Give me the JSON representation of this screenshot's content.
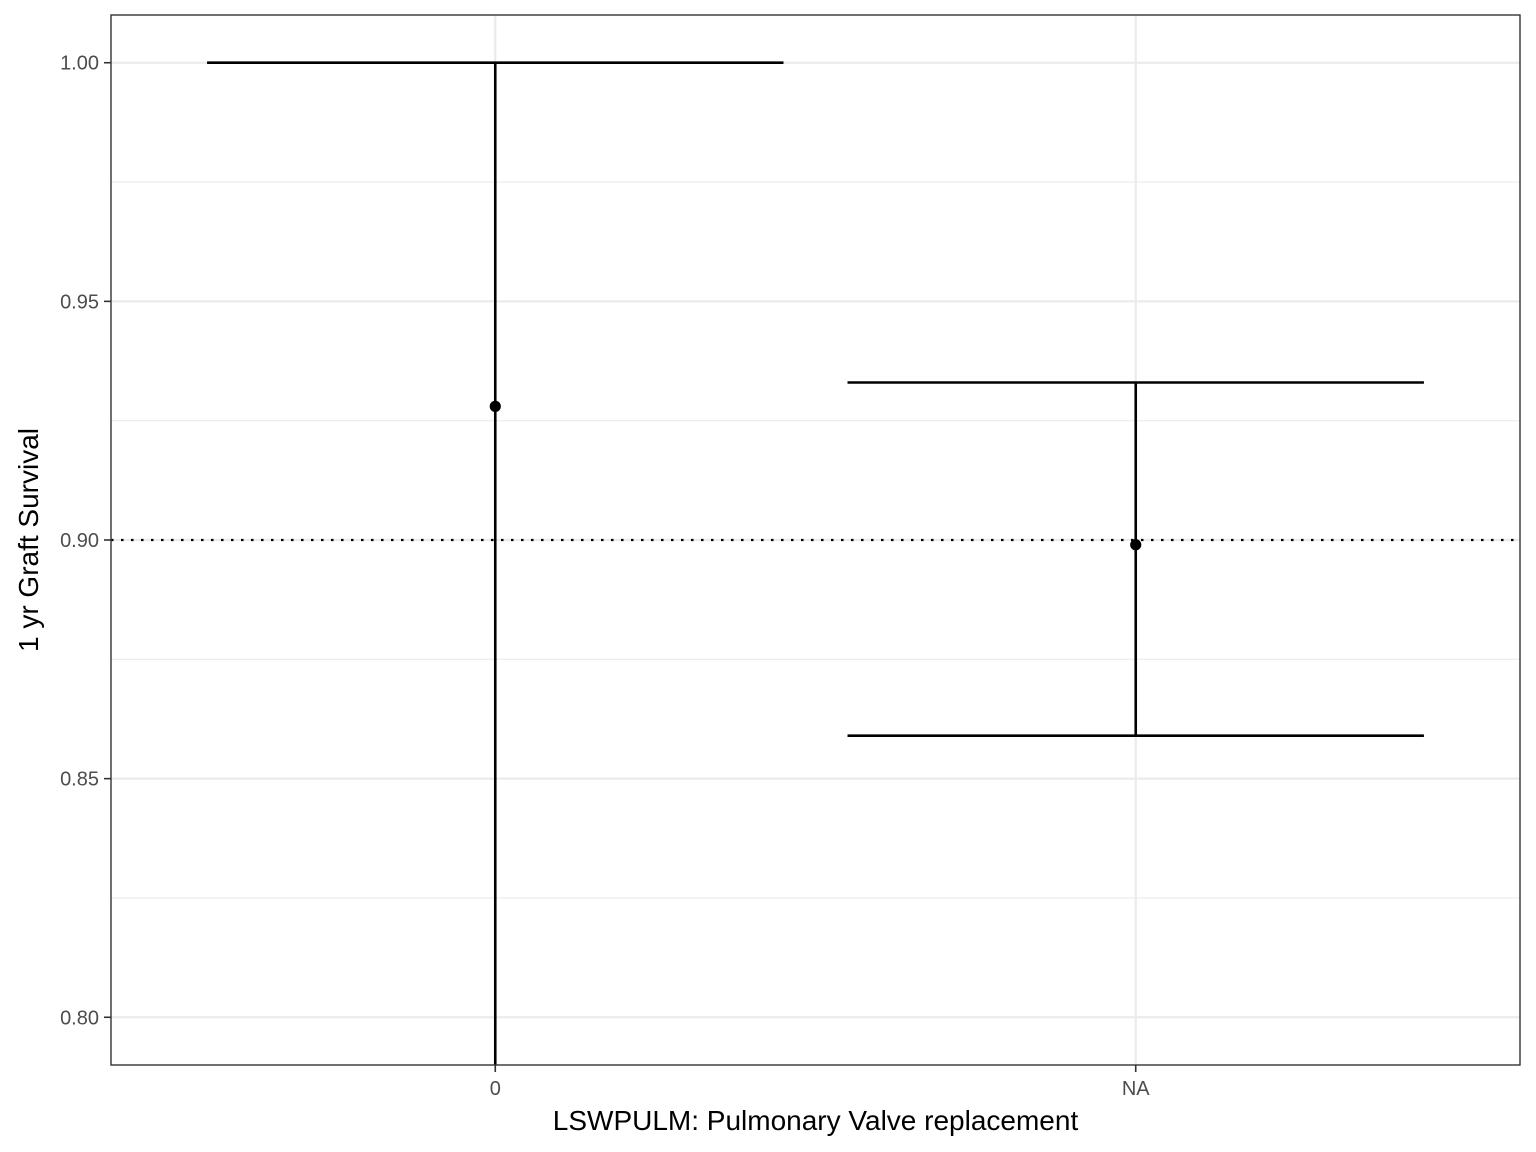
{
  "chart_data": {
    "type": "errorbar",
    "xlabel": "LSWPULM: Pulmonary Valve replacement",
    "ylabel": "1 yr Graft Survival",
    "categories": [
      "0",
      "NA"
    ],
    "estimates": [
      0.928,
      0.899
    ],
    "lower": [
      0.788,
      0.859
    ],
    "upper": [
      1.0,
      0.933
    ],
    "reference_line": {
      "y": 0.9,
      "style": "dotted"
    },
    "ylim": [
      0.79,
      1.01
    ],
    "yticks": [
      0.8,
      0.85,
      0.9,
      0.95,
      1.0
    ],
    "ytick_labels": [
      "0.80",
      "0.85",
      "0.90",
      "0.95",
      "1.00"
    ],
    "grid": true,
    "theme": "bw",
    "colors": {
      "mark": "#000000",
      "grid": "#ebebeb",
      "panel_border": "#333333",
      "tick_text": "#4d4d4d"
    }
  }
}
